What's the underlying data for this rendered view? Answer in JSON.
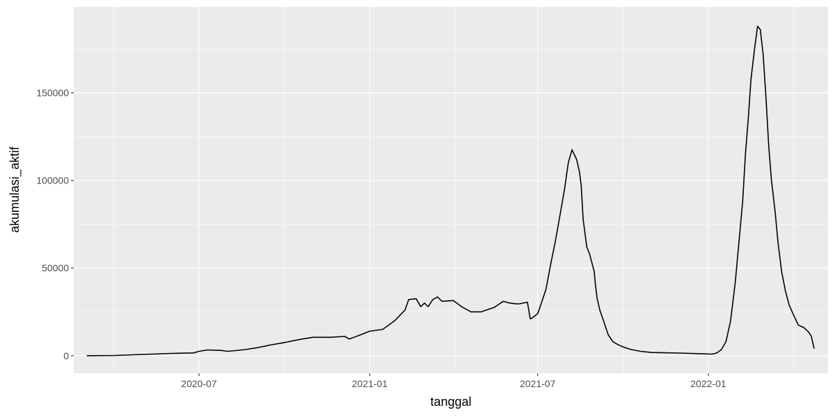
{
  "chart_data": {
    "type": "line",
    "title": "",
    "xlabel": "tanggal",
    "ylabel": "akumulasi_aktif",
    "x_ticks": [
      "2020-07",
      "2021-01",
      "2021-07",
      "2022-01"
    ],
    "y_ticks": [
      "0",
      "50000",
      "100000",
      "150000"
    ],
    "xlim": [
      "2020-02-17",
      "2022-05-10"
    ],
    "ylim": [
      -10000,
      199000
    ],
    "grid": true,
    "legend": "none",
    "colors": {
      "panel": "#ebebeb",
      "grid": "#ffffff",
      "line": "#000000"
    },
    "series": [
      {
        "name": "akumulasi_aktif",
        "points": [
          [
            "2020-03-02",
            0
          ],
          [
            "2020-04-01",
            100
          ],
          [
            "2020-05-01",
            700
          ],
          [
            "2020-06-01",
            1300
          ],
          [
            "2020-06-25",
            1600
          ],
          [
            "2020-07-01",
            2500
          ],
          [
            "2020-07-10",
            3300
          ],
          [
            "2020-07-25",
            3000
          ],
          [
            "2020-08-01",
            2500
          ],
          [
            "2020-08-20",
            3500
          ],
          [
            "2020-09-01",
            4500
          ],
          [
            "2020-09-20",
            6500
          ],
          [
            "2020-10-01",
            7500
          ],
          [
            "2020-10-20",
            9500
          ],
          [
            "2020-11-01",
            10500
          ],
          [
            "2020-11-20",
            10500
          ],
          [
            "2020-12-05",
            11000
          ],
          [
            "2020-12-10",
            9500
          ],
          [
            "2020-12-25",
            12500
          ],
          [
            "2021-01-01",
            14000
          ],
          [
            "2021-01-15",
            15000
          ],
          [
            "2021-01-28",
            20000
          ],
          [
            "2021-02-08",
            26000
          ],
          [
            "2021-02-12",
            32000
          ],
          [
            "2021-02-20",
            32500
          ],
          [
            "2021-02-25",
            28000
          ],
          [
            "2021-03-01",
            30000
          ],
          [
            "2021-03-05",
            28000
          ],
          [
            "2021-03-10",
            32000
          ],
          [
            "2021-03-15",
            33500
          ],
          [
            "2021-03-20",
            31000
          ],
          [
            "2021-04-01",
            31500
          ],
          [
            "2021-04-10",
            28000
          ],
          [
            "2021-04-20",
            25000
          ],
          [
            "2021-05-01",
            25000
          ],
          [
            "2021-05-15",
            27500
          ],
          [
            "2021-05-25",
            31000
          ],
          [
            "2021-06-01",
            30000
          ],
          [
            "2021-06-10",
            29500
          ],
          [
            "2021-06-20",
            30500
          ],
          [
            "2021-06-23",
            21000
          ],
          [
            "2021-06-25",
            21500
          ],
          [
            "2021-07-01",
            24000
          ],
          [
            "2021-07-05",
            30000
          ],
          [
            "2021-07-10",
            38000
          ],
          [
            "2021-07-15",
            52000
          ],
          [
            "2021-07-20",
            65000
          ],
          [
            "2021-07-25",
            80000
          ],
          [
            "2021-07-30",
            95000
          ],
          [
            "2021-08-03",
            110000
          ],
          [
            "2021-08-07",
            117500
          ],
          [
            "2021-08-12",
            112000
          ],
          [
            "2021-08-15",
            105000
          ],
          [
            "2021-08-17",
            97000
          ],
          [
            "2021-08-19",
            78000
          ],
          [
            "2021-08-23",
            62000
          ],
          [
            "2021-08-26",
            58000
          ],
          [
            "2021-08-29",
            52000
          ],
          [
            "2021-08-31",
            48000
          ],
          [
            "2021-09-01",
            42000
          ],
          [
            "2021-09-03",
            33000
          ],
          [
            "2021-09-06",
            26000
          ],
          [
            "2021-09-10",
            20000
          ],
          [
            "2021-09-15",
            12000
          ],
          [
            "2021-09-20",
            8000
          ],
          [
            "2021-09-25",
            6500
          ],
          [
            "2021-10-01",
            5000
          ],
          [
            "2021-10-10",
            3500
          ],
          [
            "2021-10-20",
            2500
          ],
          [
            "2021-11-01",
            1800
          ],
          [
            "2021-12-01",
            1500
          ],
          [
            "2021-12-20",
            1200
          ],
          [
            "2022-01-05",
            900
          ],
          [
            "2022-01-10",
            1500
          ],
          [
            "2022-01-15",
            3500
          ],
          [
            "2022-01-20",
            8000
          ],
          [
            "2022-01-25",
            20000
          ],
          [
            "2022-01-30",
            42000
          ],
          [
            "2022-02-03",
            65000
          ],
          [
            "2022-02-07",
            88000
          ],
          [
            "2022-02-10",
            115000
          ],
          [
            "2022-02-13",
            135000
          ],
          [
            "2022-02-16",
            158000
          ],
          [
            "2022-02-20",
            176000
          ],
          [
            "2022-02-23",
            188000
          ],
          [
            "2022-02-26",
            186000
          ],
          [
            "2022-03-01",
            172000
          ],
          [
            "2022-03-04",
            148000
          ],
          [
            "2022-03-07",
            120000
          ],
          [
            "2022-03-10",
            100000
          ],
          [
            "2022-03-14",
            82000
          ],
          [
            "2022-03-17",
            65000
          ],
          [
            "2022-03-21",
            48000
          ],
          [
            "2022-03-25",
            37000
          ],
          [
            "2022-03-29",
            29000
          ],
          [
            "2022-04-03",
            23000
          ],
          [
            "2022-04-08",
            17500
          ],
          [
            "2022-04-14",
            16000
          ],
          [
            "2022-04-19",
            13500
          ],
          [
            "2022-04-22",
            11000
          ],
          [
            "2022-04-25",
            4000
          ]
        ]
      }
    ]
  }
}
